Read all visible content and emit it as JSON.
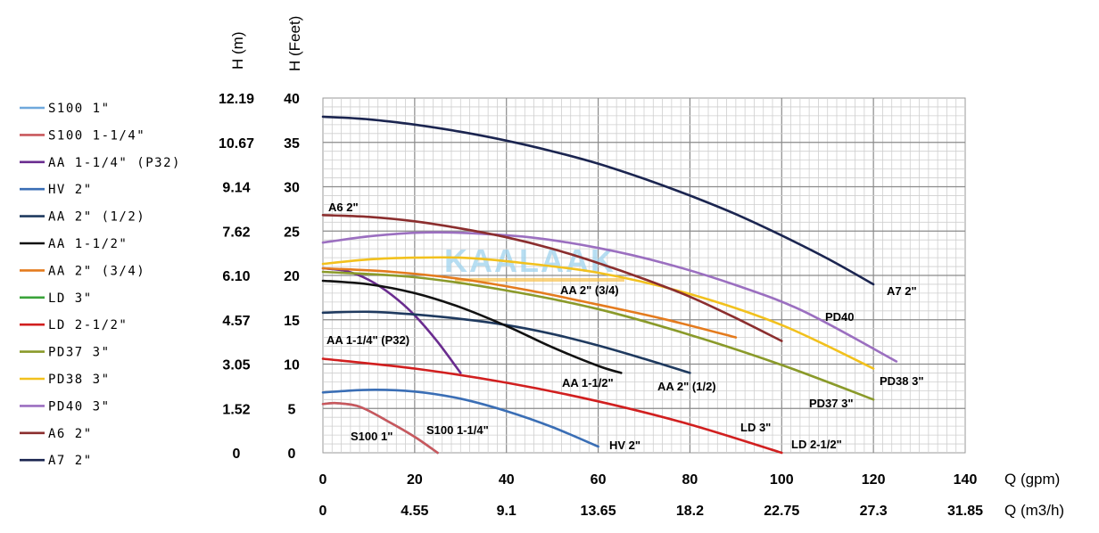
{
  "chart_data": {
    "type": "line",
    "title": "",
    "xlabel_primary": "Q (gpm)",
    "xlabel_secondary": "Q (m3/h)",
    "ylabel_primary": "H (Feet)",
    "ylabel_secondary": "H (m)",
    "xlim": [
      0,
      140
    ],
    "ylim": [
      0,
      40
    ],
    "x_ticks_gpm": [
      "0",
      "20",
      "40",
      "60",
      "80",
      "100",
      "120",
      "140"
    ],
    "x_ticks_m3h": [
      "0",
      "4.55",
      "9.1",
      "13.65",
      "18.2",
      "22.75",
      "27.3",
      "31.85"
    ],
    "y_ticks_feet": [
      "0",
      "5",
      "10",
      "15",
      "20",
      "25",
      "30",
      "35",
      "40"
    ],
    "y_ticks_m": [
      "0",
      "1.52",
      "3.05",
      "4.57",
      "6.10",
      "7.62",
      "9.14",
      "10.67",
      "12.19"
    ],
    "grid": true,
    "legend_position": "left",
    "watermark": "KAALAAK",
    "series": [
      {
        "name": "S100 1\"",
        "color": "#6fa8dc",
        "label": "S100 1\"",
        "x": [
          0,
          3,
          8,
          14,
          20,
          25
        ],
        "y": [
          5.5,
          5.6,
          5.2,
          3.6,
          1.8,
          0
        ]
      },
      {
        "name": "S100 1-1/4\"",
        "color": "#c9585c",
        "label": "S100 1-1/4\"",
        "x": [
          0,
          3,
          8,
          14,
          20,
          25
        ],
        "y": [
          5.5,
          5.6,
          5.2,
          3.6,
          1.8,
          0
        ]
      },
      {
        "name": "AA 1-1/4\" (P32)",
        "color": "#6a2c8f",
        "label": "AA 1-1/4\" (P32)",
        "x": [
          0,
          5,
          10,
          15,
          20,
          25,
          30
        ],
        "y": [
          20.8,
          20.5,
          19.5,
          17.8,
          15.5,
          12.5,
          9
        ]
      },
      {
        "name": "HV 2\"",
        "color": "#3a6eb5",
        "label": "HV 2\"",
        "x": [
          0,
          10,
          20,
          30,
          40,
          50,
          60
        ],
        "y": [
          6.8,
          7.1,
          6.9,
          6.1,
          4.7,
          2.9,
          0.7
        ]
      },
      {
        "name": "AA 2\" (1/2)",
        "color": "#1f3a5f",
        "label": "AA 2\" (1/2)",
        "x": [
          0,
          10,
          20,
          30,
          40,
          50,
          60,
          70,
          80
        ],
        "y": [
          15.8,
          15.9,
          15.6,
          15.1,
          14.4,
          13.4,
          12.1,
          10.6,
          9
        ]
      },
      {
        "name": "AA 1-1/2\"",
        "color": "#111111",
        "label": "AA  1-1/2\"",
        "x": [
          0,
          10,
          20,
          30,
          40,
          50,
          60,
          65
        ],
        "y": [
          19.4,
          19.0,
          18.0,
          16.4,
          14.3,
          11.9,
          9.8,
          9
        ]
      },
      {
        "name": "AA 2\" (3/4)",
        "color": "#e47b1e",
        "label": "AA 2\" (3/4)",
        "x": [
          0,
          15,
          30,
          45,
          60,
          75,
          90
        ],
        "y": [
          20.8,
          20.4,
          19.6,
          18.3,
          16.7,
          15.0,
          13
        ]
      },
      {
        "name": "LD 3\"",
        "color": "#3aa33a",
        "label": "LD 3\"",
        "x": [],
        "y": []
      },
      {
        "name": "LD 2-1/2\"",
        "color": "#d11f1f",
        "label": "LD 2-1/2\"",
        "x": [
          0,
          20,
          40,
          60,
          80,
          100
        ],
        "y": [
          10.6,
          9.5,
          7.9,
          5.8,
          3.2,
          0
        ]
      },
      {
        "name": "PD37 3\"",
        "color": "#8a9a2a",
        "label": "PD37 3\"",
        "x": [
          0,
          20,
          40,
          60,
          80,
          100,
          120
        ],
        "y": [
          20.4,
          19.8,
          18.3,
          16.2,
          13.3,
          9.9,
          6
        ]
      },
      {
        "name": "PD38 3\"",
        "color": "#f2c11d",
        "label": "PD38 3\"",
        "x": [
          0,
          10,
          20,
          30,
          40,
          60,
          80,
          100,
          120
        ],
        "y": [
          21.3,
          21.8,
          22.0,
          22.0,
          21.6,
          20.3,
          17.9,
          14.4,
          9.5
        ]
      },
      {
        "name": "PD40 3\"",
        "color": "#9b6fc0",
        "label": "PD40",
        "x": [
          0,
          10,
          20,
          30,
          45,
          60,
          75,
          90,
          105,
          125
        ],
        "y": [
          23.7,
          24.4,
          24.8,
          24.8,
          24.3,
          23.1,
          21.3,
          18.9,
          15.9,
          10.3
        ]
      },
      {
        "name": "A6 2\"",
        "color": "#8b2e2e",
        "label": "A6 2\"",
        "x": [
          0,
          10,
          20,
          30,
          40,
          50,
          60,
          70,
          80,
          90,
          100
        ],
        "y": [
          26.8,
          26.6,
          26.1,
          25.3,
          24.3,
          23.0,
          21.4,
          19.6,
          17.6,
          15.2,
          12.6
        ]
      },
      {
        "name": "A7 2\"",
        "color": "#1b2550",
        "label": "A7 2\"",
        "x": [
          0,
          10,
          20,
          30,
          40,
          50,
          60,
          70,
          80,
          90,
          100,
          110,
          120
        ],
        "y": [
          37.9,
          37.6,
          37.0,
          36.2,
          35.2,
          34.0,
          32.6,
          30.9,
          29.0,
          26.9,
          24.5,
          21.9,
          19.0
        ]
      }
    ],
    "annotations": [
      "A6 2\"",
      "AA 2\" (3/4)",
      "AA 1-1/4\" (P32)",
      "AA  1-1/2\"",
      "AA 2\" (1/2)",
      "S100 1\"",
      "S100 1-1/4\"",
      "HV 2\"",
      "LD 3\"",
      "LD 2-1/2\"",
      "PD37 3\"",
      "PD38 3\"",
      "PD40",
      "A7 2\""
    ]
  }
}
